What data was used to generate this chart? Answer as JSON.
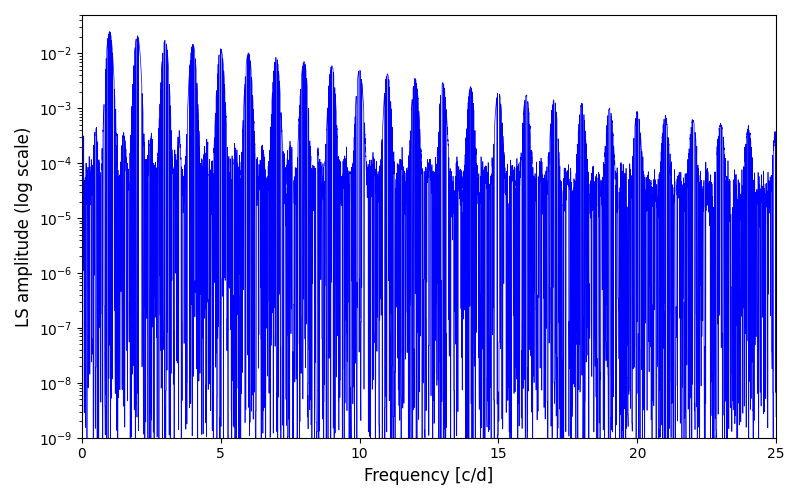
{
  "title": "",
  "xlabel": "Frequency [c/d]",
  "ylabel": "LS amplitude (log scale)",
  "line_color": "#0000ff",
  "line_width": 0.5,
  "xlim": [
    0,
    25
  ],
  "ylim": [
    1e-09,
    0.05
  ],
  "yscale": "log",
  "figsize": [
    8.0,
    5.0
  ],
  "dpi": 100,
  "background_color": "#ffffff",
  "seed": 12345,
  "n_points": 8000,
  "freq_max": 25.0
}
